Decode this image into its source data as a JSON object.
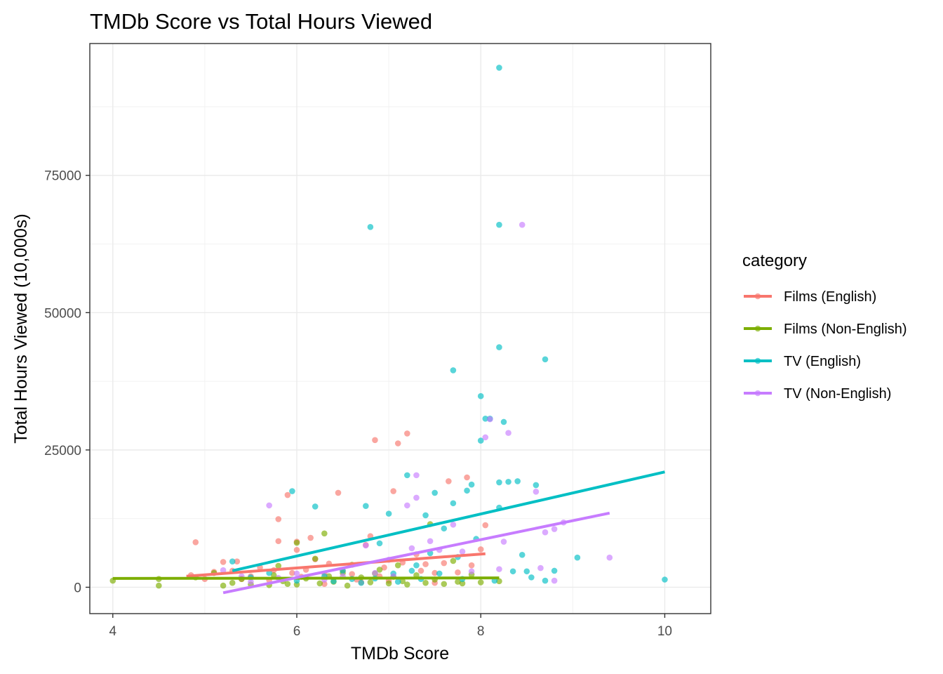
{
  "chart_data": {
    "type": "scatter",
    "title": "TMDb Score vs Total Hours Viewed",
    "xlabel": "TMDb Score",
    "ylabel": "Total Hours Viewed (10,000s)",
    "xlim": [
      3.75,
      10.5
    ],
    "ylim": [
      -4800,
      99000
    ],
    "x_ticks": [
      4,
      6,
      8,
      10
    ],
    "y_ticks": [
      0,
      25000,
      50000,
      75000
    ],
    "x_minor_ticks": [
      5,
      7,
      9
    ],
    "y_minor_ticks": [
      12500,
      37500,
      62500,
      87500
    ],
    "grid": true,
    "legend": {
      "title": "category",
      "position": "right"
    },
    "trend_lines": "linear fit per category",
    "series": [
      {
        "name": "Films (English)",
        "color": "#F8766D",
        "trend": {
          "x": [
            4.8,
            8.05
          ],
          "y": [
            2000,
            6100
          ]
        },
        "points": [
          [
            4.85,
            2200
          ],
          [
            4.9,
            8200
          ],
          [
            5.0,
            1500
          ],
          [
            5.1,
            2800
          ],
          [
            5.2,
            4600
          ],
          [
            5.3,
            3000
          ],
          [
            5.35,
            4700
          ],
          [
            5.4,
            1500
          ],
          [
            5.5,
            2000
          ],
          [
            5.6,
            3600
          ],
          [
            5.7,
            1300
          ],
          [
            5.75,
            3100
          ],
          [
            5.8,
            8400
          ],
          [
            5.8,
            12400
          ],
          [
            5.9,
            16800
          ],
          [
            5.95,
            2600
          ],
          [
            6.0,
            6800
          ],
          [
            6.0,
            8300
          ],
          [
            6.05,
            1900
          ],
          [
            6.1,
            3200
          ],
          [
            6.15,
            9000
          ],
          [
            6.2,
            5100
          ],
          [
            6.3,
            2500
          ],
          [
            6.35,
            4300
          ],
          [
            6.45,
            17200
          ],
          [
            6.5,
            3000
          ],
          [
            6.6,
            2400
          ],
          [
            6.65,
            1400
          ],
          [
            6.75,
            7700
          ],
          [
            6.8,
            9300
          ],
          [
            6.85,
            26800
          ],
          [
            6.9,
            2000
          ],
          [
            6.95,
            3600
          ],
          [
            7.05,
            17500
          ],
          [
            7.1,
            26200
          ],
          [
            7.15,
            4500
          ],
          [
            7.2,
            28000
          ],
          [
            7.3,
            6000
          ],
          [
            7.35,
            3000
          ],
          [
            7.4,
            4200
          ],
          [
            7.5,
            2600
          ],
          [
            7.6,
            4400
          ],
          [
            7.65,
            19300
          ],
          [
            7.75,
            2700
          ],
          [
            7.85,
            20000
          ],
          [
            7.9,
            4000
          ],
          [
            8.0,
            6900
          ],
          [
            8.05,
            11300
          ],
          [
            6.3,
            600
          ],
          [
            6.7,
            900
          ],
          [
            7.0,
            1200
          ],
          [
            7.5,
            800
          ]
        ]
      },
      {
        "name": "Films (Non-English)",
        "color": "#7CAE00",
        "trend": {
          "x": [
            4.0,
            8.2
          ],
          "y": [
            1600,
            1700
          ]
        },
        "points": [
          [
            4.0,
            1200
          ],
          [
            4.5,
            1500
          ],
          [
            4.5,
            300
          ],
          [
            4.9,
            1800
          ],
          [
            5.1,
            2600
          ],
          [
            5.2,
            300
          ],
          [
            5.3,
            800
          ],
          [
            5.4,
            1500
          ],
          [
            5.5,
            500
          ],
          [
            5.7,
            400
          ],
          [
            5.75,
            2200
          ],
          [
            5.8,
            3900
          ],
          [
            5.85,
            1100
          ],
          [
            5.9,
            600
          ],
          [
            6.0,
            8100
          ],
          [
            6.0,
            500
          ],
          [
            6.1,
            1600
          ],
          [
            6.2,
            5200
          ],
          [
            6.25,
            700
          ],
          [
            6.3,
            9800
          ],
          [
            6.35,
            2000
          ],
          [
            6.4,
            1000
          ],
          [
            6.5,
            2600
          ],
          [
            6.55,
            300
          ],
          [
            6.6,
            4100
          ],
          [
            6.7,
            1800
          ],
          [
            6.8,
            900
          ],
          [
            6.85,
            2500
          ],
          [
            6.9,
            3200
          ],
          [
            7.0,
            700
          ],
          [
            7.05,
            1900
          ],
          [
            7.1,
            4000
          ],
          [
            7.15,
            1100
          ],
          [
            7.2,
            500
          ],
          [
            7.3,
            2200
          ],
          [
            7.4,
            800
          ],
          [
            7.45,
            11500
          ],
          [
            7.5,
            1400
          ],
          [
            7.6,
            600
          ],
          [
            7.7,
            4800
          ],
          [
            7.75,
            1000
          ],
          [
            7.8,
            700
          ],
          [
            7.9,
            2300
          ],
          [
            8.0,
            900
          ],
          [
            8.2,
            1100
          ]
        ]
      },
      {
        "name": "TV (English)",
        "color": "#00BFC4",
        "trend": {
          "x": [
            5.3,
            10.0
          ],
          "y": [
            3000,
            21000
          ]
        },
        "points": [
          [
            5.3,
            4700
          ],
          [
            5.5,
            1800
          ],
          [
            5.7,
            2600
          ],
          [
            5.95,
            17500
          ],
          [
            6.0,
            1200
          ],
          [
            6.2,
            14700
          ],
          [
            6.3,
            2000
          ],
          [
            6.4,
            1100
          ],
          [
            6.5,
            3000
          ],
          [
            6.6,
            1500
          ],
          [
            6.7,
            800
          ],
          [
            6.75,
            14800
          ],
          [
            6.8,
            65600
          ],
          [
            6.85,
            1600
          ],
          [
            6.9,
            8000
          ],
          [
            7.0,
            13400
          ],
          [
            7.05,
            2500
          ],
          [
            7.1,
            1000
          ],
          [
            7.2,
            20400
          ],
          [
            7.25,
            3000
          ],
          [
            7.3,
            4000
          ],
          [
            7.35,
            1500
          ],
          [
            7.4,
            13100
          ],
          [
            7.45,
            6200
          ],
          [
            7.5,
            17200
          ],
          [
            7.55,
            2500
          ],
          [
            7.6,
            10700
          ],
          [
            7.7,
            15300
          ],
          [
            7.7,
            39500
          ],
          [
            7.75,
            5500
          ],
          [
            7.8,
            1500
          ],
          [
            7.85,
            17600
          ],
          [
            7.9,
            18700
          ],
          [
            7.95,
            8800
          ],
          [
            8.0,
            26700
          ],
          [
            8.0,
            34800
          ],
          [
            8.05,
            30700
          ],
          [
            8.1,
            30700
          ],
          [
            8.15,
            1200
          ],
          [
            8.2,
            94600
          ],
          [
            8.2,
            66000
          ],
          [
            8.2,
            43700
          ],
          [
            8.2,
            19100
          ],
          [
            8.2,
            14500
          ],
          [
            8.25,
            30100
          ],
          [
            8.3,
            19200
          ],
          [
            8.35,
            2900
          ],
          [
            8.4,
            19300
          ],
          [
            8.45,
            5900
          ],
          [
            8.5,
            2900
          ],
          [
            8.55,
            1800
          ],
          [
            8.6,
            18600
          ],
          [
            8.7,
            41500
          ],
          [
            8.7,
            1200
          ],
          [
            8.8,
            3000
          ],
          [
            9.05,
            5400
          ],
          [
            10.0,
            1400
          ]
        ]
      },
      {
        "name": "TV (Non-English)",
        "color": "#C77CFF",
        "trend": {
          "x": [
            5.2,
            9.4
          ],
          "y": [
            -1000,
            13500
          ]
        },
        "points": [
          [
            5.2,
            3100
          ],
          [
            5.4,
            2000
          ],
          [
            5.5,
            1000
          ],
          [
            5.7,
            14900
          ],
          [
            5.8,
            1700
          ],
          [
            6.0,
            2500
          ],
          [
            6.3,
            1400
          ],
          [
            6.5,
            2000
          ],
          [
            6.75,
            7600
          ],
          [
            6.85,
            2600
          ],
          [
            7.0,
            5000
          ],
          [
            7.05,
            2000
          ],
          [
            7.2,
            14900
          ],
          [
            7.25,
            7100
          ],
          [
            7.3,
            20400
          ],
          [
            7.3,
            16300
          ],
          [
            7.45,
            8400
          ],
          [
            7.55,
            6800
          ],
          [
            7.7,
            11400
          ],
          [
            7.8,
            6500
          ],
          [
            7.9,
            2900
          ],
          [
            8.05,
            27300
          ],
          [
            8.1,
            30600
          ],
          [
            8.2,
            3300
          ],
          [
            8.25,
            8300
          ],
          [
            8.3,
            28100
          ],
          [
            8.45,
            66000
          ],
          [
            8.6,
            17400
          ],
          [
            8.65,
            3500
          ],
          [
            8.7,
            10000
          ],
          [
            8.8,
            10600
          ],
          [
            8.8,
            1200
          ],
          [
            8.9,
            11800
          ],
          [
            9.4,
            5400
          ]
        ]
      }
    ]
  }
}
